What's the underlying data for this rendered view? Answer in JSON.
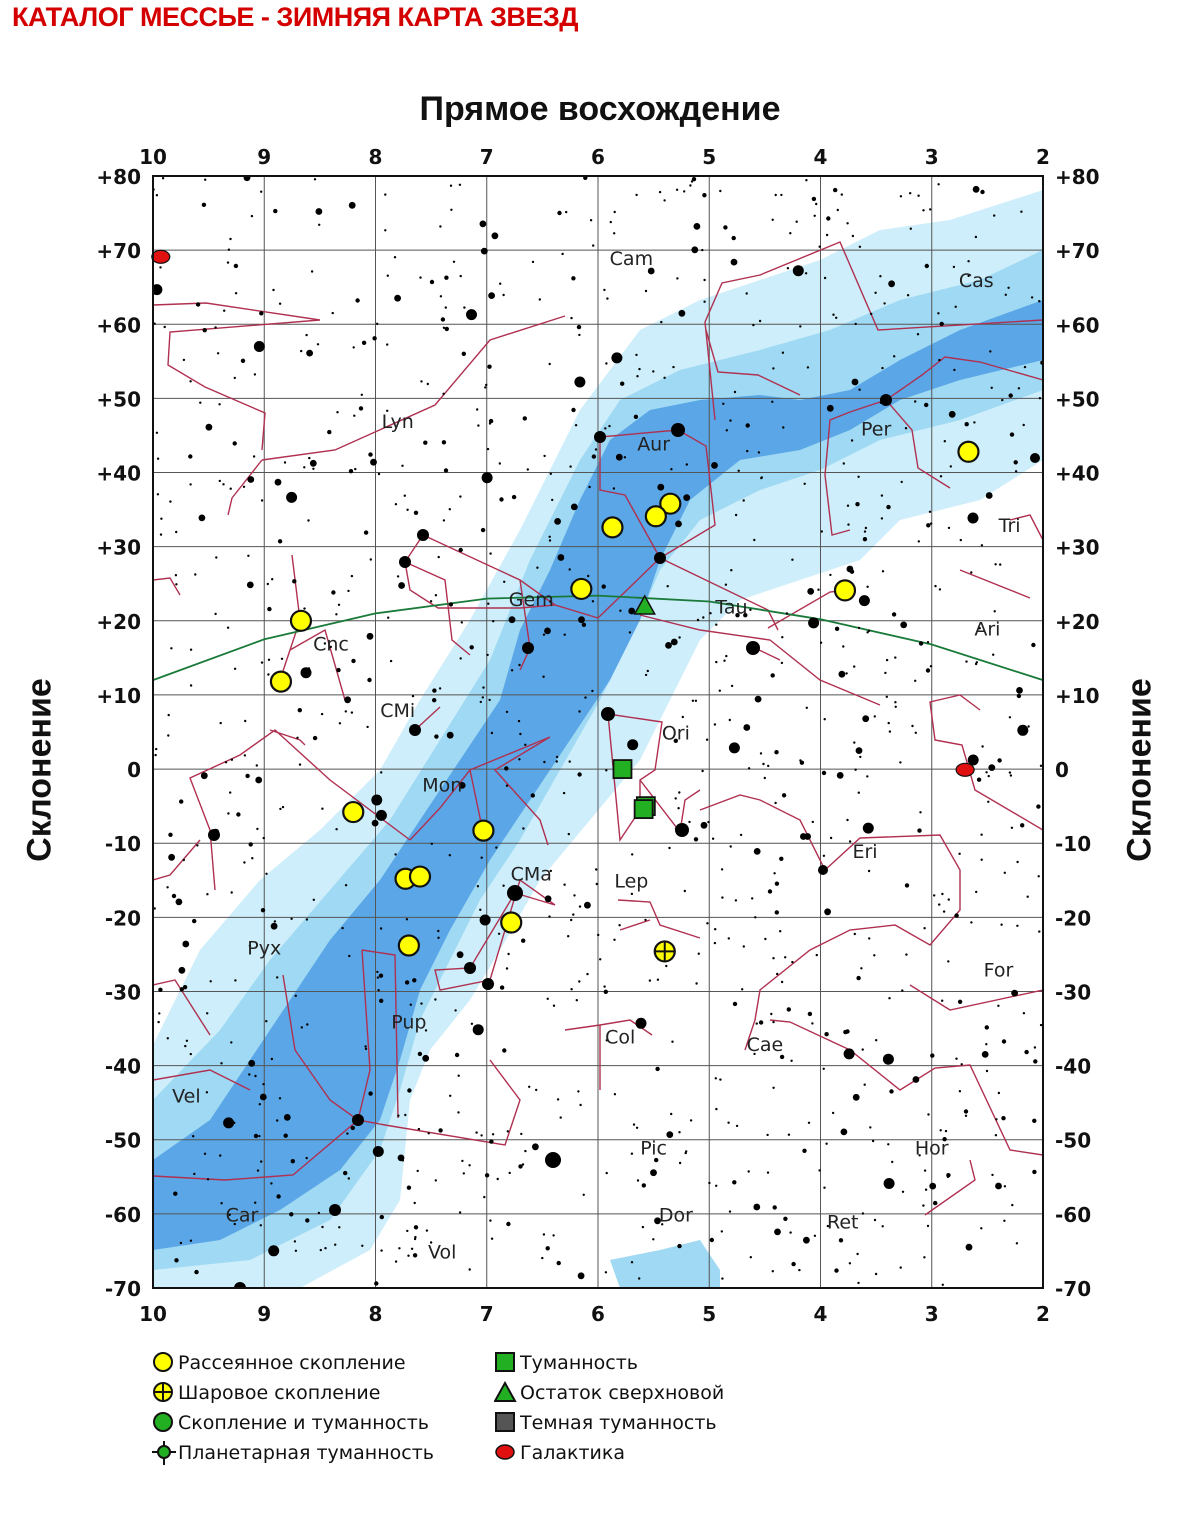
{
  "page_title": "КАТАЛОГ МЕССЬЕ - ЗИМНЯЯ КАРТА ЗВЕЗД",
  "axes": {
    "x_title": "Прямое восхождение",
    "y_title": "Склонение",
    "ra_ticks": [
      "10",
      "9",
      "8",
      "7",
      "6",
      "5",
      "4",
      "3",
      "2"
    ],
    "dec_ticks": [
      "+80",
      "+70",
      "+60",
      "+50",
      "+40",
      "+30",
      "+20",
      "+10",
      "0",
      "-10",
      "-20",
      "-30",
      "-40",
      "-50",
      "-60",
      "-70"
    ]
  },
  "chart_data": {
    "type": "scatter",
    "xlabel": "Прямое восхождение",
    "ylabel": "Склонение",
    "xlim": [
      10,
      2
    ],
    "ylim": [
      -70,
      80
    ],
    "grid": true,
    "colors": {
      "constellation_lines": "#b03050",
      "ecliptic": "#1a7a3a",
      "milky_way_outer": "#cdeefa",
      "milky_way_mid": "#9fd9f3",
      "milky_way_core": "#5aa6e6",
      "open_cluster": "#ffff00",
      "nebula": "#22b022",
      "galaxy": "#e01010"
    },
    "constellations": [
      {
        "name": "Cam",
        "ra": 5.7,
        "dec": 68
      },
      {
        "name": "Cas",
        "ra": 2.6,
        "dec": 65
      },
      {
        "name": "Lyn",
        "ra": 7.8,
        "dec": 46
      },
      {
        "name": "Aur",
        "ra": 5.5,
        "dec": 43
      },
      {
        "name": "Per",
        "ra": 3.5,
        "dec": 45
      },
      {
        "name": "Tri",
        "ra": 2.3,
        "dec": 32
      },
      {
        "name": "Gem",
        "ra": 6.6,
        "dec": 22
      },
      {
        "name": "Tau",
        "ra": 4.8,
        "dec": 21
      },
      {
        "name": "Cnc",
        "ra": 8.4,
        "dec": 16
      },
      {
        "name": "Ari",
        "ra": 2.5,
        "dec": 18
      },
      {
        "name": "CMi",
        "ra": 7.8,
        "dec": 7
      },
      {
        "name": "Ori",
        "ra": 5.3,
        "dec": 4
      },
      {
        "name": "Mon",
        "ra": 7.4,
        "dec": -3
      },
      {
        "name": "Eri",
        "ra": 3.6,
        "dec": -12
      },
      {
        "name": "CMa",
        "ra": 6.6,
        "dec": -15
      },
      {
        "name": "Lep",
        "ra": 5.7,
        "dec": -16
      },
      {
        "name": "Pyx",
        "ra": 9.0,
        "dec": -25
      },
      {
        "name": "For",
        "ra": 2.4,
        "dec": -28
      },
      {
        "name": "Pup",
        "ra": 7.7,
        "dec": -35
      },
      {
        "name": "Col",
        "ra": 5.8,
        "dec": -37
      },
      {
        "name": "Cae",
        "ra": 4.5,
        "dec": -38
      },
      {
        "name": "Vel",
        "ra": 9.7,
        "dec": -45
      },
      {
        "name": "Pic",
        "ra": 5.5,
        "dec": -52
      },
      {
        "name": "Hor",
        "ra": 3.0,
        "dec": -52
      },
      {
        "name": "Car",
        "ra": 9.2,
        "dec": -61
      },
      {
        "name": "Dor",
        "ra": 5.3,
        "dec": -61
      },
      {
        "name": "Ret",
        "ra": 3.8,
        "dec": -62
      },
      {
        "name": "Vol",
        "ra": 7.4,
        "dec": -66
      }
    ],
    "open_clusters": [
      {
        "ra": 2.67,
        "dec": 42.8
      },
      {
        "ra": 3.78,
        "dec": 24.1
      },
      {
        "ra": 5.35,
        "dec": 35.8
      },
      {
        "ra": 5.48,
        "dec": 34.1
      },
      {
        "ra": 5.87,
        "dec": 32.6
      },
      {
        "ra": 6.15,
        "dec": 24.3
      },
      {
        "ra": 8.67,
        "dec": 20.0
      },
      {
        "ra": 8.85,
        "dec": 11.8
      },
      {
        "ra": 8.2,
        "dec": -5.8
      },
      {
        "ra": 7.03,
        "dec": -8.3
      },
      {
        "ra": 7.73,
        "dec": -14.8
      },
      {
        "ra": 7.6,
        "dec": -14.5
      },
      {
        "ra": 7.7,
        "dec": -23.8
      },
      {
        "ra": 6.78,
        "dec": -20.7
      }
    ],
    "globular_clusters": [
      {
        "ra": 5.4,
        "dec": -24.6
      }
    ],
    "nebulae": [
      {
        "ra": 5.78,
        "dec": 0.0
      },
      {
        "ra": 5.57,
        "dec": -5.0
      },
      {
        "ra": 5.59,
        "dec": -5.4
      }
    ],
    "supernova_remnants": [
      {
        "ra": 5.58,
        "dec": 22.0
      }
    ],
    "galaxies": [
      {
        "ra": 9.93,
        "dec": 69.1
      },
      {
        "ra": 2.7,
        "dec": -0.1
      }
    ],
    "ecliptic": [
      {
        "ra": 10.0,
        "dec": 12.0
      },
      {
        "ra": 9.0,
        "dec": 17.5
      },
      {
        "ra": 8.0,
        "dec": 21.0
      },
      {
        "ra": 7.0,
        "dec": 23.0
      },
      {
        "ra": 6.0,
        "dec": 23.4
      },
      {
        "ra": 5.0,
        "dec": 22.6
      },
      {
        "ra": 4.0,
        "dec": 20.2
      },
      {
        "ra": 3.0,
        "dec": 16.8
      },
      {
        "ra": 2.0,
        "dec": 12.0
      }
    ]
  },
  "legend": {
    "left": [
      {
        "icon": "open-cluster",
        "label": "Рассеянное скопление"
      },
      {
        "icon": "globular-cluster",
        "label": "Шаровое скопление"
      },
      {
        "icon": "cluster-nebula",
        "label": "Скопление и туманность"
      },
      {
        "icon": "planetary-nebula",
        "label": "Планетарная туманность"
      }
    ],
    "right": [
      {
        "icon": "nebula",
        "label": "Туманность"
      },
      {
        "icon": "supernova-remnant",
        "label": "Остаток сверхновой"
      },
      {
        "icon": "dark-nebula",
        "label": "Темная туманность"
      },
      {
        "icon": "galaxy",
        "label": "Галактика"
      }
    ]
  }
}
